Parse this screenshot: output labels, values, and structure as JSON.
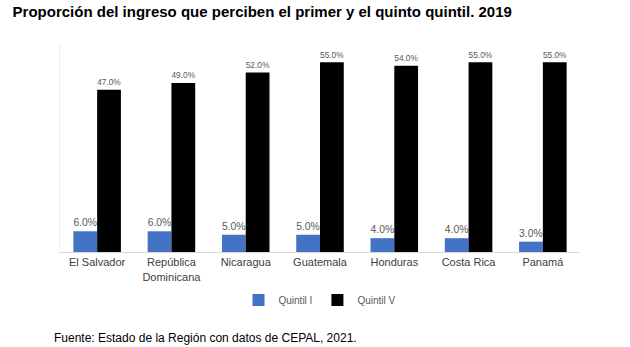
{
  "chart_data": {
    "type": "bar",
    "title": "Proporción del ingreso que perciben el primer y el quinto quintil. 2019",
    "categories": [
      "El Salvador",
      "República Dominicana",
      "Nicaragua",
      "Guatemala",
      "Honduras",
      "Costa Rica",
      "Panamá"
    ],
    "series": [
      {
        "name": "Quintil I",
        "color": "#4472c4",
        "values": [
          6,
          6,
          5,
          5,
          4,
          4,
          3
        ],
        "value_labels": [
          "6.0%",
          "6.0%",
          "5.0%",
          "5.0%",
          "4.0%",
          "4.0%",
          "3.0%"
        ]
      },
      {
        "name": "Quintil V",
        "color": "#000000",
        "values": [
          47,
          49,
          52,
          55,
          54,
          55,
          55
        ],
        "value_labels": [
          "47.0%",
          "49.0%",
          "52.0%",
          "55.0%",
          "54.0%",
          "55.0%",
          "55.0%"
        ]
      }
    ],
    "ylim": [
      0,
      60
    ],
    "grid": false,
    "legend": "bottom",
    "data_labels": true,
    "tick_labels": "x",
    "annotations": [
      "Fuente: Estado de la Región con datos de CEPAL, 2021."
    ]
  }
}
